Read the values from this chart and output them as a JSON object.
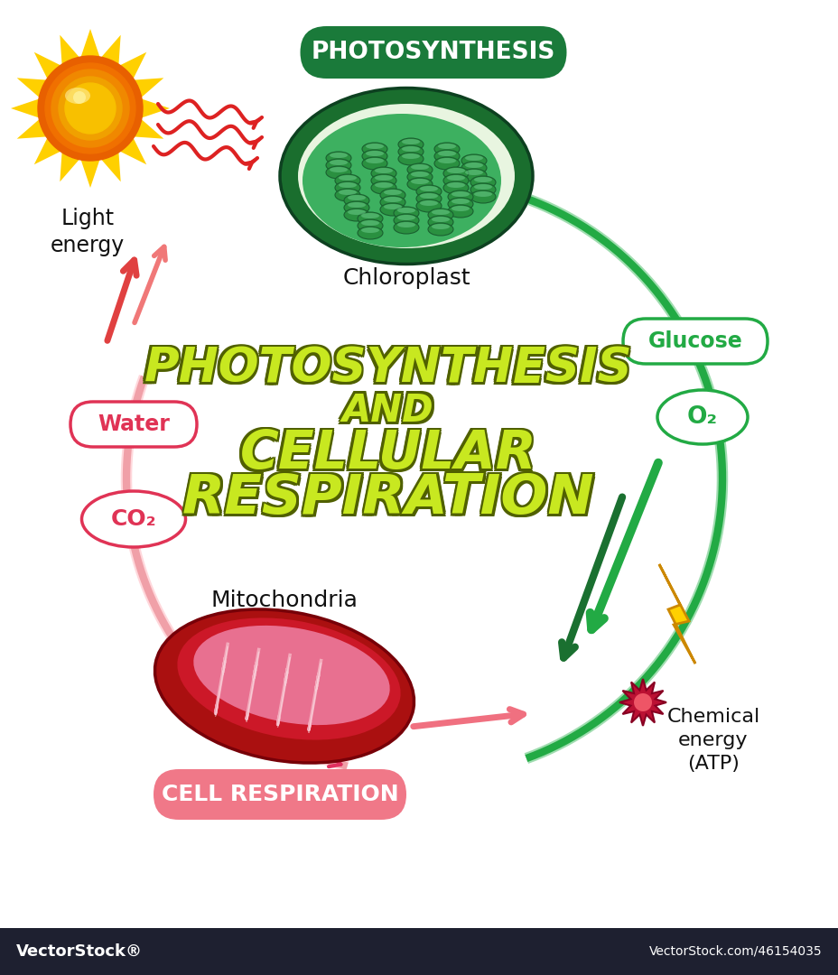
{
  "background_color": "#ffffff",
  "photosynthesis_label": "PHOTOSYNTHESIS",
  "cell_respiration_label": "CELL RESPIRATION",
  "chloroplast_label": "Chloroplast",
  "mitochondria_label": "Mitochondria",
  "light_energy_label": "Light\nenergy",
  "glucose_label": "Glucose",
  "o2_label": "O₂",
  "water_label": "Water",
  "co2_label": "CO₂",
  "chemical_energy_label": "Chemical\nenergy\n(ATP)",
  "green_dark": "#1a7a3a",
  "green_mid": "#2eaa50",
  "green_badge": "#1e8840",
  "red_dark": "#aa1122",
  "red_mid": "#e03355",
  "pink_arrow": "#f0a0a8",
  "pink_badge": "#f07080",
  "bottom_bar_color": "#1e2030",
  "footer_left": "VectorStock®",
  "footer_right": "VectorStock.com/46154035",
  "title_lines": [
    "PHOTOSYNTHESIS",
    "AND",
    "CELLULAR",
    "RESPIRATION"
  ],
  "title_color_bright": "#c8e820",
  "title_color_dark": "#4a6000",
  "title_shadow_color": "#506000"
}
